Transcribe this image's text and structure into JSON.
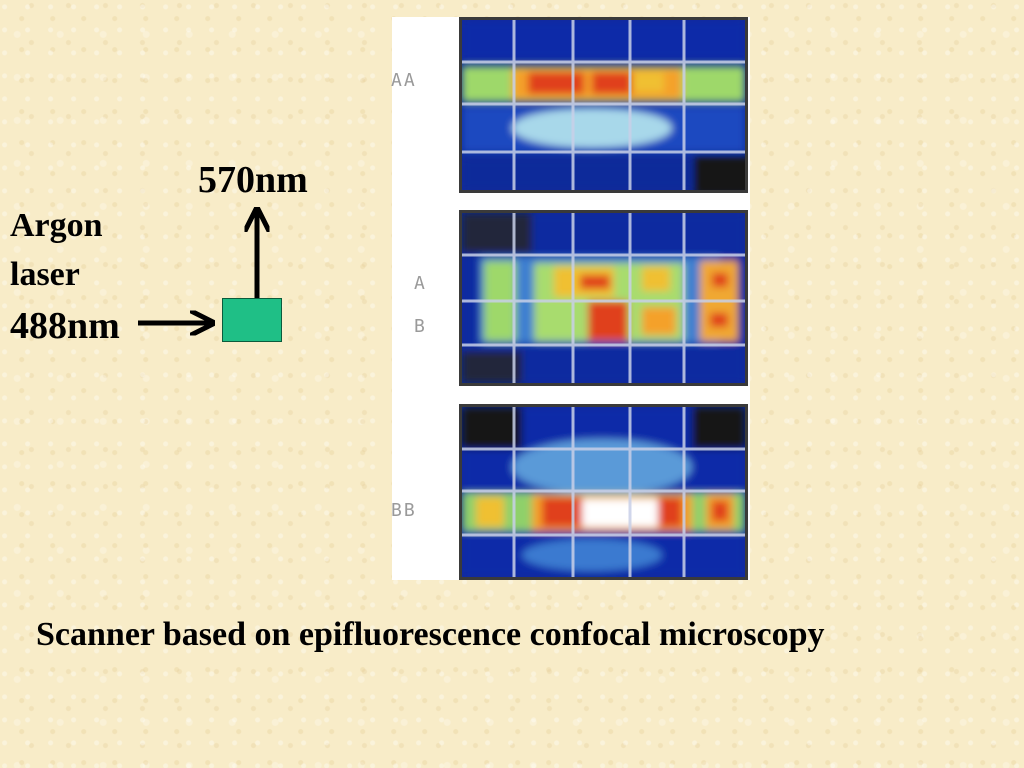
{
  "diagram": {
    "emission_label": "570nm",
    "laser_label": [
      "Argon",
      "laser",
      "488nm"
    ],
    "caption": "Scanner based on epifluorescence confocal microscopy",
    "colors": {
      "sample": "#1fbf86",
      "arrow": "#000000",
      "scan_background": "#0a2a9a"
    }
  },
  "scans": [
    {
      "row_labels": [
        "AA"
      ]
    },
    {
      "row_labels": [
        "A",
        "B"
      ]
    },
    {
      "row_labels": [
        "BB"
      ]
    }
  ]
}
